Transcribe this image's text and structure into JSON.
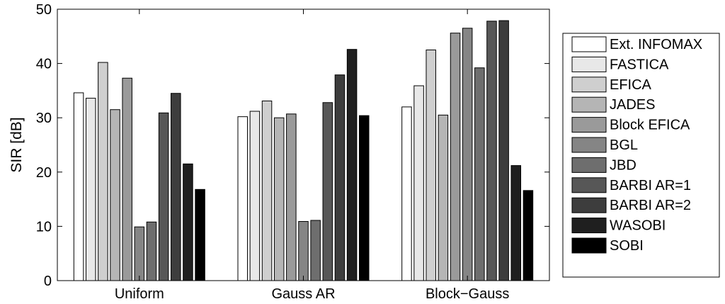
{
  "chart_data": {
    "type": "bar",
    "categories": [
      "Uniform",
      "Gauss AR",
      "Block−Gauss"
    ],
    "ylabel": "SIR [dB]",
    "xlabel": "",
    "ylim": [
      0,
      50
    ],
    "yticks": [
      "0",
      "10",
      "20",
      "30",
      "40",
      "50"
    ],
    "grid": false,
    "legend_position": "outside-right",
    "series": [
      {
        "name": "Ext. INFOMAX",
        "color": "#ffffff",
        "values": [
          34.6,
          30.2,
          32.0
        ]
      },
      {
        "name": "FASTICA",
        "color": "#e8e8e8",
        "values": [
          33.6,
          31.2,
          35.9
        ]
      },
      {
        "name": "EFICA",
        "color": "#cfcfcf",
        "values": [
          40.2,
          33.1,
          42.5
        ]
      },
      {
        "name": "JADES",
        "color": "#b5b5b5",
        "values": [
          31.5,
          30.0,
          30.5
        ]
      },
      {
        "name": "Block EFICA",
        "color": "#9a9a9a",
        "values": [
          37.3,
          30.7,
          45.6
        ]
      },
      {
        "name": "BGL",
        "color": "#858585",
        "values": [
          9.9,
          10.9,
          46.5
        ]
      },
      {
        "name": "JBD",
        "color": "#6e6e6e",
        "values": [
          10.8,
          11.1,
          39.2
        ]
      },
      {
        "name": "BARBI AR=1",
        "color": "#575757",
        "values": [
          30.9,
          32.8,
          47.8
        ]
      },
      {
        "name": "BARBI AR=2",
        "color": "#3d3d3d",
        "values": [
          34.5,
          37.9,
          47.9
        ]
      },
      {
        "name": "WASOBI",
        "color": "#1f1f1f",
        "values": [
          21.5,
          42.6,
          21.2
        ]
      },
      {
        "name": "SOBI",
        "color": "#000000",
        "values": [
          16.8,
          30.4,
          16.6
        ]
      }
    ]
  }
}
